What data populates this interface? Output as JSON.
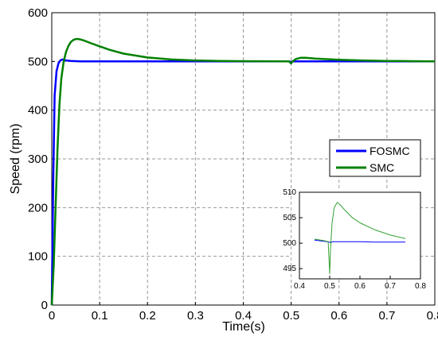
{
  "chart_data": [
    {
      "type": "line",
      "xlabel": "Time(s)",
      "ylabel": "Speed (rpm)",
      "xlim": [
        0,
        0.8
      ],
      "ylim": [
        0,
        600
      ],
      "xticks": [
        "0",
        "0.1",
        "0.2",
        "0.3",
        "0.4",
        "0.5",
        "0.6",
        "0.7",
        "0.8"
      ],
      "yticks": [
        "0",
        "100",
        "200",
        "300",
        "400",
        "500",
        "600"
      ],
      "grid": true,
      "legend_position": "right",
      "series": [
        {
          "name": "FOSMC",
          "color": "#0000ff",
          "x": [
            0,
            0.003,
            0.006,
            0.01,
            0.014,
            0.018,
            0.022,
            0.026,
            0.03,
            0.04,
            0.06,
            0.1,
            0.2,
            0.3,
            0.4,
            0.495,
            0.5,
            0.503,
            0.51,
            0.52,
            0.6,
            0.7,
            0.8
          ],
          "values": [
            0,
            250,
            430,
            480,
            496,
            502,
            504,
            503,
            502,
            501,
            500,
            500,
            500,
            500,
            500,
            500,
            499,
            500,
            500,
            500,
            500,
            500,
            500
          ]
        },
        {
          "name": "SMC",
          "color": "#008000",
          "x": [
            0,
            0.004,
            0.008,
            0.012,
            0.016,
            0.02,
            0.025,
            0.03,
            0.035,
            0.04,
            0.045,
            0.05,
            0.055,
            0.06,
            0.07,
            0.08,
            0.1,
            0.12,
            0.15,
            0.2,
            0.25,
            0.3,
            0.35,
            0.4,
            0.45,
            0.495,
            0.5,
            0.503,
            0.51,
            0.52,
            0.53,
            0.55,
            0.6,
            0.65,
            0.7,
            0.75,
            0.8
          ],
          "values": [
            0,
            80,
            200,
            320,
            410,
            465,
            500,
            520,
            532,
            540,
            544,
            546,
            546,
            545,
            542,
            538,
            531,
            524,
            516,
            508,
            504,
            502,
            501,
            500.5,
            500.3,
            500.2,
            496,
            500,
            505,
            507.5,
            507.5,
            506,
            503.5,
            502,
            501,
            500.5,
            500.2
          ]
        }
      ]
    },
    {
      "type": "line",
      "xlim": [
        0.4,
        0.8
      ],
      "ylim": [
        493,
        510
      ],
      "xticks": [
        "0.4",
        "0.5",
        "0.6",
        "0.7",
        "0.8"
      ],
      "yticks": [
        "495",
        "500",
        "505",
        "510"
      ],
      "series": [
        {
          "name": "FOSMC",
          "color": "#0000ff",
          "x": [
            0.45,
            0.48,
            0.5,
            0.502,
            0.51,
            0.55,
            0.6,
            0.65,
            0.7,
            0.75
          ],
          "values": [
            500.6,
            500.4,
            500.2,
            500.1,
            500.3,
            500.3,
            500.3,
            500.2,
            500.2,
            500.2
          ]
        },
        {
          "name": "SMC",
          "color": "#33a033",
          "x": [
            0.45,
            0.48,
            0.495,
            0.5,
            0.503,
            0.508,
            0.515,
            0.525,
            0.535,
            0.55,
            0.575,
            0.6,
            0.65,
            0.7,
            0.75
          ],
          "values": [
            500.8,
            500.5,
            500.3,
            494,
            499,
            504,
            507,
            508,
            507.5,
            506.5,
            505,
            504,
            502.6,
            501.6,
            500.9
          ]
        }
      ]
    }
  ]
}
